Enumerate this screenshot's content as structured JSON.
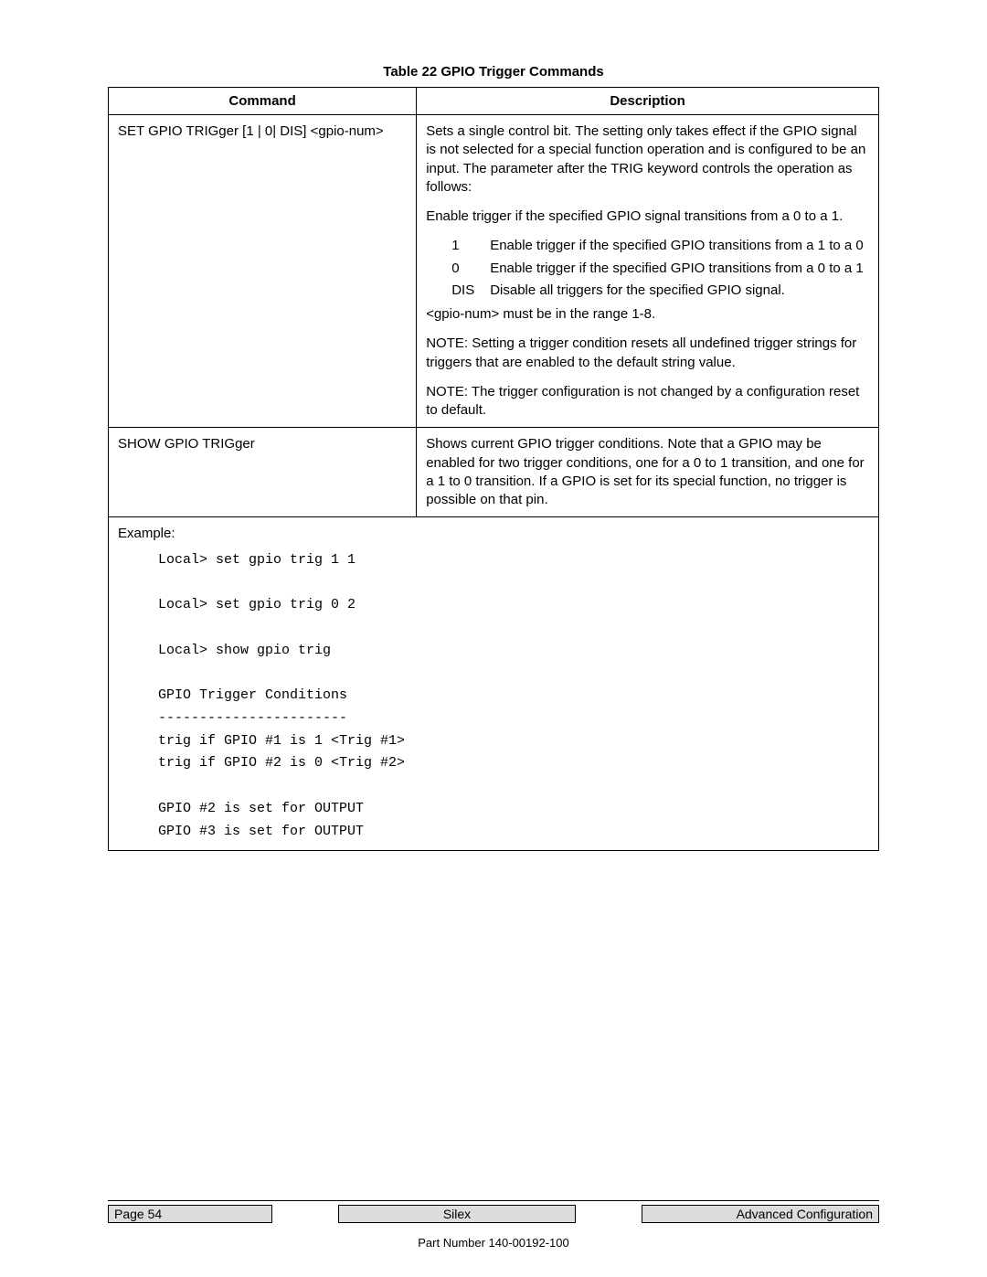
{
  "caption": "Table 22  GPIO Trigger Commands",
  "headers": {
    "command": "Command",
    "description": "Description"
  },
  "row1": {
    "command": "SET GPIO TRIGger [1 | 0| DIS] <gpio-num>",
    "p1": "Sets a single control bit.  The setting only takes effect if the GPIO signal is not selected for a special function operation and is configured to be an input.  The parameter after the TRIG keyword controls the operation as follows:",
    "p2": "Enable trigger if the specified GPIO signal transitions from a 0 to a 1.",
    "opts": {
      "o1": {
        "k": "1",
        "v": "Enable trigger if the specified GPIO transitions from a 1 to a 0"
      },
      "o2": {
        "k": "0",
        "v": "Enable trigger if the specified GPIO transitions from a 0 to a 1"
      },
      "o3": {
        "k": "DIS",
        "v": "Disable all triggers for the specified GPIO signal."
      }
    },
    "p3": "<gpio-num> must be in the range 1-8.",
    "p4": "NOTE:  Setting a trigger condition resets all undefined trigger strings for triggers that are enabled to the default string value.",
    "p5": "NOTE:  The trigger configuration is not changed by a configuration reset to default."
  },
  "row2": {
    "command": "SHOW GPIO TRIGger",
    "desc": "Shows current GPIO trigger conditions.  Note that a GPIO may be enabled for two trigger conditions, one for a 0 to 1 transition, and one for a 1 to 0 transition.  If a GPIO is set for its special function, no trigger is possible on that pin."
  },
  "example": {
    "label": "Example:",
    "text": "Local> set gpio trig 1 1\n\nLocal> set gpio trig 0 2\n\nLocal> show gpio trig\n\nGPIO Trigger Conditions\n-----------------------\ntrig if GPIO #1 is 1 <Trig #1>\ntrig if GPIO #2 is 0 <Trig #2>\n\nGPIO #2 is set for OUTPUT\nGPIO #3 is set for OUTPUT"
  },
  "footer": {
    "page": "Page 54",
    "mid": "Silex",
    "right": "Advanced Configuration",
    "part": "Part Number 140-00192-100"
  }
}
